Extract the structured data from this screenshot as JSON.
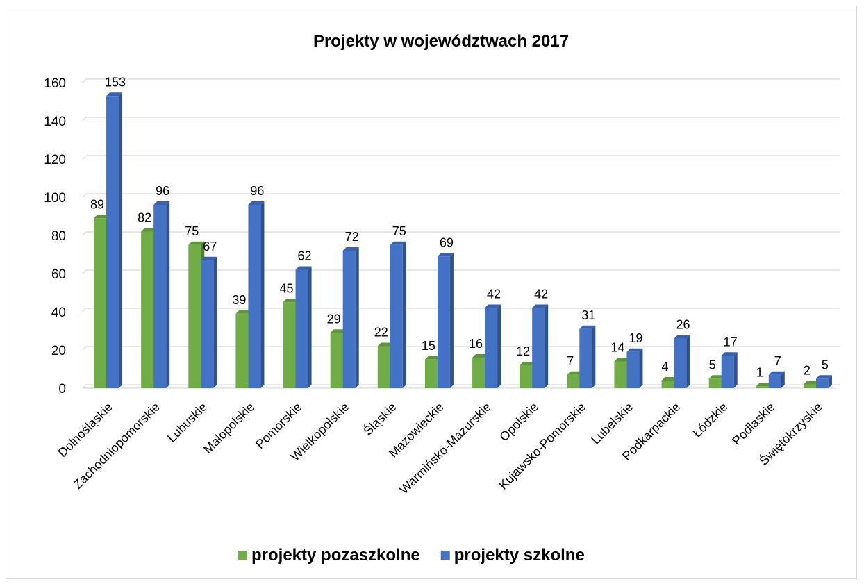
{
  "chart_data": {
    "type": "bar",
    "title": "Projekty w województwach 2017",
    "categories": [
      "Dolnośląskie",
      "Zachodniopomorskie",
      "Lubuskie",
      "Małopolskie",
      "Pomorskie",
      "Wielkopolskie",
      "Śląskie",
      "Mazowieckie",
      "Warmińsko-Mazurskie",
      "Opolskie",
      "Kujawsko-Pomorskie",
      "Lubelskie",
      "Podkarpackie",
      "Łódzkie",
      "Podlaskie",
      "Świętokrzyskie"
    ],
    "series": [
      {
        "name": "projekty pozaszkolne",
        "color": "#70ad47",
        "values": [
          89,
          82,
          75,
          39,
          45,
          29,
          22,
          15,
          16,
          12,
          7,
          14,
          4,
          5,
          1,
          2
        ]
      },
      {
        "name": "projekty szkolne",
        "color": "#4472c4",
        "values": [
          153,
          96,
          67,
          96,
          62,
          72,
          75,
          69,
          42,
          42,
          31,
          19,
          26,
          17,
          7,
          5
        ]
      }
    ],
    "ylim": [
      0,
      160
    ],
    "yticks": [
      0,
      20,
      40,
      60,
      80,
      100,
      120,
      140,
      160
    ],
    "grid": true,
    "legend_position": "bottom",
    "bar_style": "3d"
  }
}
